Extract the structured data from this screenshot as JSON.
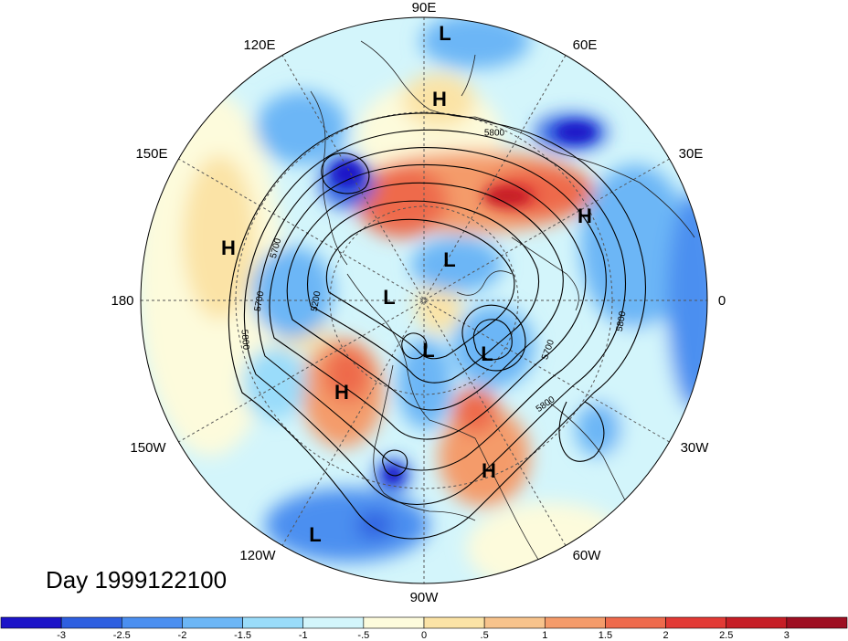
{
  "title": "Day 1999122100",
  "longitude_labels": {
    "top": "90E",
    "top_right": "60E",
    "right_upper": "30E",
    "right": "0",
    "right_lower": "30W",
    "bottom_right": "60W",
    "bottom": "90W",
    "bottom_left": "120W",
    "left_lower": "150W",
    "left": "180",
    "left_upper": "150E",
    "top_left": "120E"
  },
  "centers": [
    {
      "label": "L"
    },
    {
      "label": "H"
    },
    {
      "label": "H"
    },
    {
      "label": "H"
    },
    {
      "label": "L"
    },
    {
      "label": "L"
    },
    {
      "label": "L"
    },
    {
      "label": "L"
    },
    {
      "label": "H"
    },
    {
      "label": "H"
    },
    {
      "label": "L"
    }
  ],
  "contour_labels": [
    "5800",
    "5700",
    "5700",
    "5200",
    "5800",
    "5700",
    "5800",
    "5800"
  ],
  "colorbar": {
    "ticks": [
      "-3",
      "-2.5",
      "-2",
      "-1.5",
      "-1",
      "-.5",
      "0",
      ".5",
      "1",
      "1.5",
      "2",
      "2.5",
      "3"
    ],
    "colors": [
      "#1c14c8",
      "#2e5fe0",
      "#4b8ff0",
      "#6cb6f6",
      "#9adcfa",
      "#d3f5fb",
      "#fdfbdc",
      "#fbe3a6",
      "#f7c38c",
      "#f49b6a",
      "#ee6a4c",
      "#e23a35",
      "#c61e26",
      "#9e0f22"
    ]
  },
  "colors": {
    "background": "#ffffff",
    "ocean_neutral": "#fdfbdc",
    "anomaly_positive": "#e23a35",
    "anomaly_negative": "#1c14c8"
  }
}
